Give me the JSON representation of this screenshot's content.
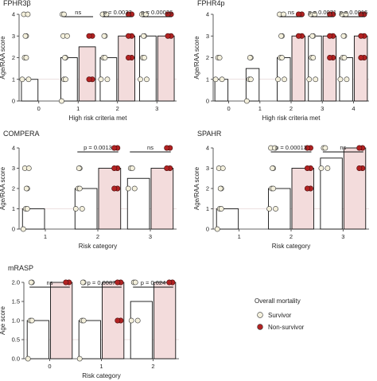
{
  "chart_data": [
    {
      "type": "bar",
      "title": "FPHR3β",
      "xlabel": "High risk criteria met",
      "ylabel": "Age/RAA score",
      "ylim": [
        0,
        4
      ],
      "yticks": [
        0,
        1,
        2,
        3,
        4
      ],
      "grid": false,
      "categories": [
        "0",
        "1",
        "2",
        "3"
      ],
      "series": [
        {
          "name": "Survivor",
          "values": [
            1,
            2,
            2,
            3
          ]
        },
        {
          "name": "Non-survivor",
          "values": [
            null,
            2.5,
            3,
            3
          ]
        }
      ],
      "points": {
        "Survivor": [
          [
            1,
            2,
            3,
            4
          ],
          [
            0,
            1,
            2,
            3,
            4
          ],
          [
            1,
            2,
            3,
            4
          ],
          [
            1,
            2,
            3,
            4
          ]
        ],
        "Non-survivor": [
          [],
          [
            1,
            3
          ],
          [
            2,
            3,
            4
          ],
          [
            3,
            4
          ]
        ]
      },
      "annotations": [
        {
          "category": "1",
          "label": "ns"
        },
        {
          "category": "2",
          "label": "p = 0.0037"
        },
        {
          "category": "3",
          "label": "p = 0.00026"
        }
      ]
    },
    {
      "type": "bar",
      "title": "FPHR4p",
      "xlabel": "High risk criteria met",
      "ylabel": "Age/RAA score",
      "ylim": [
        0,
        4
      ],
      "yticks": [
        0,
        1,
        2,
        3,
        4
      ],
      "grid": false,
      "categories": [
        "0",
        "1",
        "2",
        "3",
        "4"
      ],
      "series": [
        {
          "name": "Survivor",
          "values": [
            1,
            1.5,
            2,
            3,
            2
          ]
        },
        {
          "name": "Non-survivor",
          "values": [
            null,
            null,
            3,
            3,
            3
          ]
        }
      ],
      "points": {
        "Survivor": [
          [
            1,
            2
          ],
          [
            0,
            1,
            2
          ],
          [
            1,
            2,
            3,
            4
          ],
          [
            1,
            2,
            3,
            4
          ],
          [
            1,
            2,
            3,
            4
          ]
        ],
        "Non-survivor": [
          [],
          [],
          [
            3,
            4
          ],
          [
            2,
            3,
            4
          ],
          [
            2,
            3,
            4
          ]
        ]
      },
      "annotations": [
        {
          "category": "2",
          "label": "ns"
        },
        {
          "category": "3",
          "label": "p = 0.0071"
        },
        {
          "category": "4",
          "label": "p = 0.0016"
        }
      ]
    },
    {
      "type": "bar",
      "title": "COMPERA",
      "xlabel": "Risk category",
      "ylabel": "Age/RAA score",
      "ylim": [
        0,
        4
      ],
      "yticks": [
        0,
        1,
        2,
        3,
        4
      ],
      "grid": false,
      "categories": [
        "1",
        "2",
        "3"
      ],
      "series": [
        {
          "name": "Survivor",
          "values": [
            1,
            2,
            2.5
          ]
        },
        {
          "name": "Non-survivor",
          "values": [
            null,
            3,
            3
          ]
        }
      ],
      "points": {
        "Survivor": [
          [
            0,
            1,
            2,
            3
          ],
          [
            1,
            2,
            3
          ],
          [
            2,
            3
          ]
        ],
        "Non-survivor": [
          [],
          [
            2,
            3,
            4
          ],
          [
            3,
            4
          ]
        ]
      },
      "annotations": [
        {
          "category": "2",
          "label": "p = 0.0013"
        },
        {
          "category": "3",
          "label": "ns"
        }
      ]
    },
    {
      "type": "bar",
      "title": "SPAHR",
      "xlabel": "Risk category",
      "ylabel": "Age/RAA score",
      "ylim": [
        0,
        4
      ],
      "yticks": [
        0,
        1,
        2,
        3,
        4
      ],
      "grid": false,
      "categories": [
        "1",
        "2",
        "3"
      ],
      "series": [
        {
          "name": "Survivor",
          "values": [
            1,
            2,
            3.5
          ]
        },
        {
          "name": "Non-survivor",
          "values": [
            null,
            3,
            4
          ]
        }
      ],
      "points": {
        "Survivor": [
          [
            0,
            1,
            2,
            3
          ],
          [
            1,
            2,
            3,
            4
          ],
          [
            3,
            4
          ]
        ],
        "Non-survivor": [
          [],
          [
            2,
            3,
            4
          ],
          [
            3,
            4
          ]
        ]
      },
      "annotations": [
        {
          "category": "2",
          "label": "p = 0.00013"
        },
        {
          "category": "3",
          "label": "ns"
        }
      ]
    },
    {
      "type": "bar",
      "title": "mRASP",
      "xlabel": "Risk category",
      "ylabel": "Age score",
      "ylim": [
        0,
        2
      ],
      "yticks": [
        "0.0",
        "0.5",
        "1.0",
        "1.5",
        "2.0"
      ],
      "grid": false,
      "categories": [
        "0",
        "1",
        "2"
      ],
      "series": [
        {
          "name": "Survivor",
          "values": [
            1,
            1,
            1.5
          ]
        },
        {
          "name": "Non-survivor",
          "values": [
            2,
            2,
            2
          ]
        }
      ],
      "points": {
        "Survivor": [
          [
            0,
            1,
            2
          ],
          [
            0,
            1,
            2
          ],
          [
            1,
            2
          ]
        ],
        "Non-survivor": [
          [
            2
          ],
          [
            1,
            2
          ],
          [
            2
          ]
        ]
      },
      "annotations": [
        {
          "category": "0",
          "label": "ns"
        },
        {
          "category": "1",
          "label": "p = 0.0087"
        },
        {
          "category": "2",
          "label": "p = 0.024"
        }
      ]
    }
  ],
  "legend": {
    "title": "Overall mortality",
    "placement": "bottom-right",
    "items": [
      {
        "label": "Survivor",
        "color": "#f4f0dc"
      },
      {
        "label": "Non-survivor",
        "color": "#b22222"
      }
    ]
  },
  "colors": {
    "survivor_bar": "#ffffff",
    "nonsurvivor_bar": "#f3dcdc",
    "survivor_point": "#f4f0dc",
    "nonsurvivor_point": "#b22222",
    "reference_line": "#d9c2c2"
  }
}
